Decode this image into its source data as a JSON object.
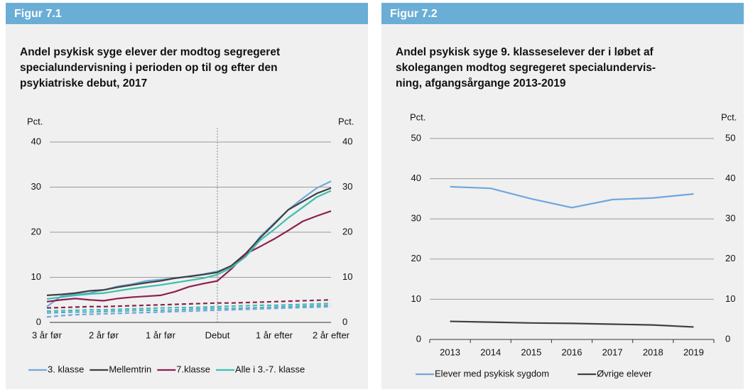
{
  "chart_data": [
    {
      "type": "line",
      "figure_label": "Figur 7.1",
      "title": [
        "Andel psykisk syge elever der modtog segregeret",
        "specialundervisning i perioden op til og efter den",
        "psykiatriske debut, 2017"
      ],
      "y_label": "Pct.",
      "y2_label": "Pct.",
      "categories": [
        "3 år før",
        null,
        null,
        null,
        "2 år før",
        null,
        null,
        null,
        "1 år før",
        null,
        null,
        null,
        "Debut",
        null,
        null,
        null,
        "1 år efter",
        null,
        null,
        null,
        "2 år efter"
      ],
      "ylim": [
        0,
        40
      ],
      "yticks": [
        0,
        10,
        20,
        30,
        40
      ],
      "grid": true,
      "series": [
        {
          "name": "3. klasse",
          "color": "#6fa8dc",
          "values": [
            3.5,
            5.8,
            6.2,
            6.5,
            7.2,
            8.0,
            8.5,
            9.2,
            9.5,
            9.8,
            10.2,
            10.7,
            11.3,
            12.5,
            14.8,
            19.0,
            22.0,
            25.0,
            27.5,
            29.8,
            31.3
          ]
        },
        {
          "name": "Mellemtrin",
          "color": "#404040",
          "values": [
            6.0,
            6.2,
            6.5,
            7.0,
            7.2,
            7.8,
            8.3,
            8.8,
            9.2,
            9.8,
            10.2,
            10.6,
            11.1,
            12.6,
            15.3,
            18.7,
            21.8,
            25.0,
            26.8,
            28.6,
            29.8
          ]
        },
        {
          "name": "7.klasse",
          "color": "#8c2050",
          "values": [
            4.6,
            5.0,
            5.3,
            5.0,
            4.8,
            5.3,
            5.6,
            5.8,
            6.0,
            6.8,
            7.9,
            8.6,
            9.2,
            11.9,
            15.2,
            16.8,
            18.5,
            20.4,
            22.4,
            23.6,
            24.7
          ]
        },
        {
          "name": "Alle i 3.-7. klasse",
          "color": "#3dbfae",
          "values": [
            5.2,
            5.6,
            6.0,
            6.3,
            6.5,
            7.0,
            7.5,
            7.9,
            8.3,
            8.8,
            9.3,
            9.8,
            10.6,
            12.2,
            14.6,
            18.2,
            20.6,
            23.2,
            25.5,
            27.8,
            29.2
          ]
        },
        {
          "color": "#8c2050",
          "dashed": true,
          "values": [
            3.2,
            3.3,
            3.4,
            3.5,
            3.5,
            3.6,
            3.7,
            3.8,
            3.9,
            4.0,
            4.1,
            4.2,
            4.3,
            4.3,
            4.4,
            4.5,
            4.6,
            4.7,
            4.8,
            4.9,
            5.0
          ]
        },
        {
          "color": "#3dbfae",
          "dashed": true,
          "values": [
            2.5,
            2.6,
            2.7,
            2.8,
            2.8,
            2.9,
            3.0,
            3.1,
            3.2,
            3.3,
            3.3,
            3.4,
            3.5,
            3.6,
            3.7,
            3.8,
            3.8,
            3.9,
            4.0,
            4.1,
            4.2
          ]
        },
        {
          "color": "#5aa9c8",
          "dashed": true,
          "values": [
            2.1,
            2.2,
            2.3,
            2.3,
            2.4,
            2.5,
            2.6,
            2.7,
            2.7,
            2.8,
            2.9,
            3.0,
            3.1,
            3.1,
            3.2,
            3.3,
            3.4,
            3.5,
            3.6,
            3.7,
            3.8
          ]
        },
        {
          "color": "#6fa8dc",
          "dashed": true,
          "values": [
            1.2,
            1.5,
            1.7,
            1.8,
            1.9,
            2.0,
            2.1,
            2.2,
            2.3,
            2.4,
            2.5,
            2.6,
            2.7,
            2.8,
            2.9,
            3.0,
            3.1,
            3.2,
            3.3,
            3.4,
            3.5
          ]
        }
      ]
    },
    {
      "type": "line",
      "figure_label": "Figur 7.2",
      "title": [
        "Andel psykisk syge 9. klasseselever der i løbet af",
        "skolegangen modtog segregeret specialundervis-",
        "ning, afgangsårgange 2013-2019"
      ],
      "y_label": "Pct.",
      "y2_label": "Pct.",
      "categories": [
        "2013",
        "2014",
        "2015",
        "2016",
        "2017",
        "2018",
        "2019"
      ],
      "ylim": [
        0,
        50
      ],
      "yticks": [
        0,
        10,
        20,
        30,
        40,
        50
      ],
      "grid": true,
      "series": [
        {
          "name": "Elever med psykisk sygdom",
          "color": "#6fa8dc",
          "values": [
            38.0,
            37.6,
            35.0,
            32.8,
            34.8,
            35.2,
            36.2
          ]
        },
        {
          "name": "Øvrige elever",
          "color": "#404040",
          "values": [
            4.5,
            4.3,
            4.1,
            4.0,
            3.8,
            3.6,
            3.1
          ]
        }
      ]
    }
  ]
}
